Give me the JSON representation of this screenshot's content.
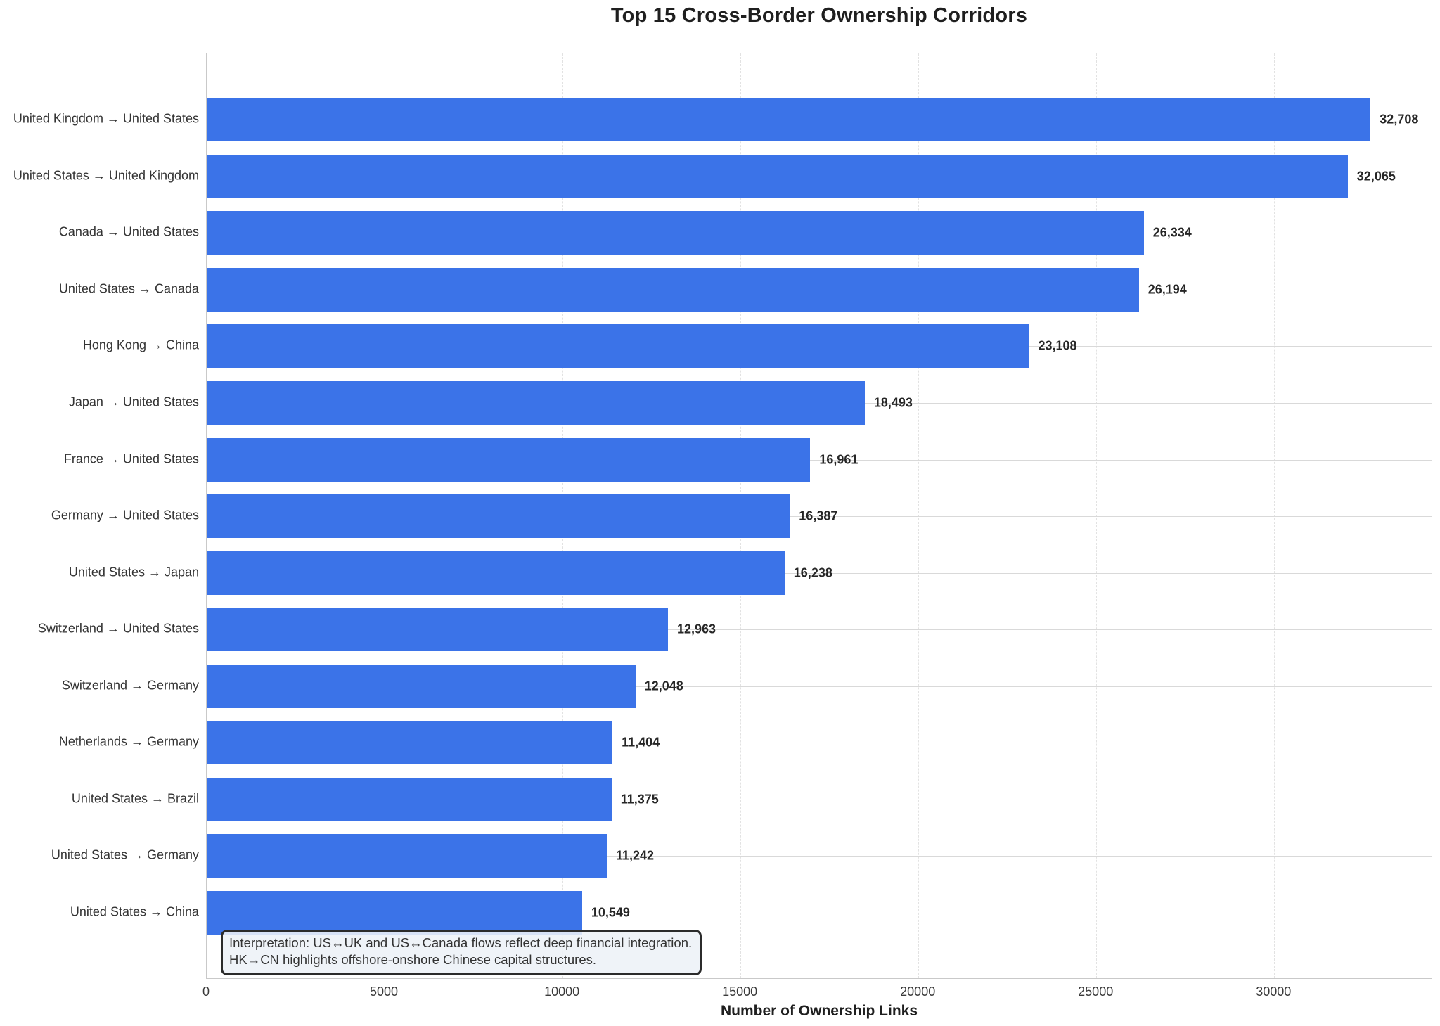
{
  "title": "Top 15 Cross-Border Ownership Corridors",
  "chart_data": {
    "type": "bar",
    "orientation": "horizontal",
    "title": "Top 15 Cross-Border Ownership Corridors",
    "xlabel": "Number of Ownership Links",
    "ylabel": "",
    "categories": [
      "United Kingdom → United States",
      "United States → United Kingdom",
      "Canada → United States",
      "United States → Canada",
      "Hong Kong → China",
      "Japan → United States",
      "France → United States",
      "Germany → United States",
      "United States → Japan",
      "Switzerland → United States",
      "Switzerland → Germany",
      "Netherlands → Germany",
      "United States → Brazil",
      "United States → Germany",
      "United States → China"
    ],
    "values": [
      32708,
      32065,
      26334,
      26194,
      23108,
      18493,
      16961,
      16387,
      16238,
      12963,
      12048,
      11404,
      11375,
      11242,
      10549
    ],
    "value_labels": [
      "32,708",
      "32,065",
      "26,334",
      "26,194",
      "23,108",
      "18,493",
      "16,961",
      "16,387",
      "16,238",
      "12,963",
      "12,048",
      "11,404",
      "11,375",
      "11,242",
      "10,549"
    ],
    "xlim": [
      0,
      34460
    ],
    "xticks": [
      0,
      5000,
      10000,
      15000,
      20000,
      25000,
      30000
    ],
    "xtick_labels": [
      "0",
      "5000",
      "10000",
      "15000",
      "20000",
      "25000",
      "30000"
    ],
    "grid": true,
    "legend": "none",
    "bar_color": "#3b73e8",
    "hgrid_color": "#d9d9d9",
    "vgrid_color": "#e2e2e2",
    "annotation": {
      "line1": "Interpretation: US↔UK and US↔Canada flows reflect deep financial integration.",
      "line2": "HK→CN highlights offshore-onshore Chinese capital structures."
    }
  }
}
